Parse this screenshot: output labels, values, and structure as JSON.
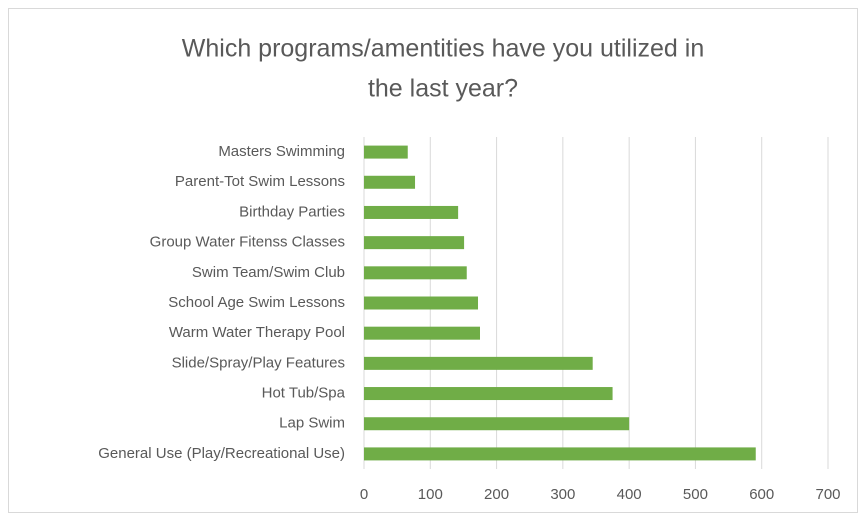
{
  "chart_data": {
    "type": "bar",
    "orientation": "horizontal",
    "title": [
      "Which programs/amentities have you utilized in",
      "the last year?"
    ],
    "categories": [
      "Masters Swimming",
      "Parent-Tot Swim Lessons",
      "Birthday Parties",
      "Group Water Fitenss Classes",
      "Swim Team/Swim Club",
      "School Age Swim Lessons",
      "Warm Water Therapy Pool",
      "Slide/Spray/Play Features",
      "Hot Tub/Spa",
      "Lap Swim",
      "General Use (Play/Recreational Use)"
    ],
    "values": [
      66,
      77,
      142,
      151,
      155,
      172,
      175,
      345,
      375,
      400,
      591
    ],
    "color": "#70ad47",
    "xlim": [
      0,
      700
    ],
    "xticks": [
      0,
      100,
      200,
      300,
      400,
      500,
      600,
      700
    ],
    "grid": true
  }
}
